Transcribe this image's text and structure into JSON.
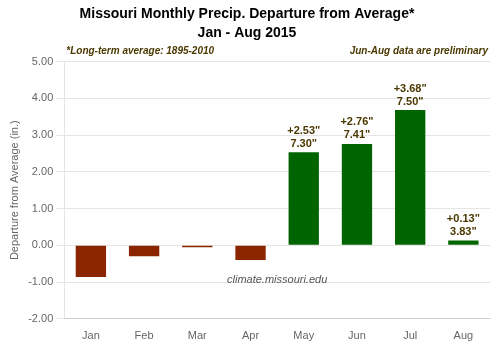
{
  "chart_data": {
    "type": "bar",
    "title": "Missouri Monthly Precip. Departure from Average*",
    "subtitle": "Jan - Aug 2015",
    "ylabel": "Departure from Average (in.)",
    "categories": [
      "Jan",
      "Feb",
      "Mar",
      "Apr",
      "May",
      "Jun",
      "Jul",
      "Aug"
    ],
    "values": [
      -0.86,
      -0.3,
      -0.05,
      -0.4,
      2.53,
      2.76,
      3.68,
      0.13
    ],
    "value_labels": [
      null,
      null,
      null,
      null,
      "+2.53\"",
      "+2.76\"",
      "+3.68\"",
      "+0.13\""
    ],
    "total_labels": [
      null,
      null,
      null,
      null,
      "7.30\"",
      "7.41\"",
      "7.50\"",
      "3.83\""
    ],
    "colors": [
      "#8B2500",
      "#8B2500",
      "#8B2500",
      "#8B2500",
      "#006400",
      "#006400",
      "#006400",
      "#006400"
    ],
    "data_labels": true,
    "ylim": [
      -2.0,
      5.0
    ],
    "yticks": [
      {
        "value": -2.0,
        "label": "-2.00"
      },
      {
        "value": -1.0,
        "label": "-1.00"
      },
      {
        "value": 0.0,
        "label": "0.00"
      },
      {
        "value": 1.0,
        "label": "1.00"
      },
      {
        "value": 2.0,
        "label": "2.00"
      },
      {
        "value": 3.0,
        "label": "3.00"
      },
      {
        "value": 4.0,
        "label": "4.00"
      },
      {
        "value": 5.0,
        "label": "5.00"
      }
    ],
    "grid": true,
    "annotations": [
      "*Long-term average: 1895-2010",
      "Jun-Aug data are preliminary",
      "climate.missouri.edu"
    ]
  }
}
